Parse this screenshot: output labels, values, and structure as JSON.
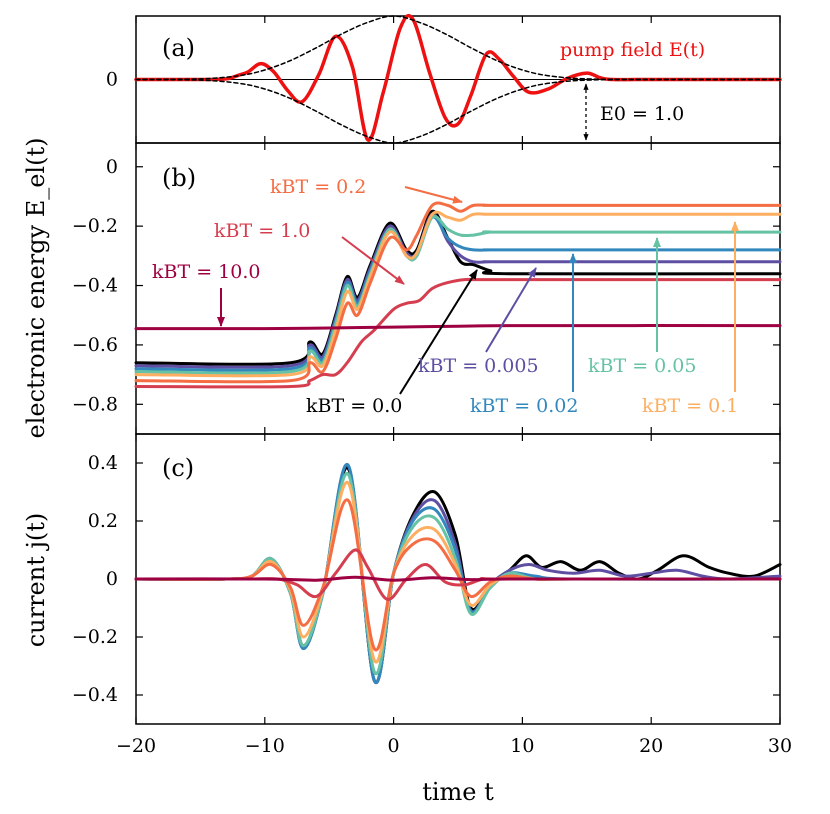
{
  "chart_data": [
    {
      "panel": "(a)",
      "type": "line",
      "x_ticks": [
        -20,
        -10,
        0,
        10,
        20,
        30
      ],
      "y_ticks": [
        0
      ],
      "ylim": [
        -1.0,
        1.0
      ],
      "xlim": [
        -20,
        30
      ],
      "annotations": [
        {
          "text": "pump field E(t)",
          "color": "#ee1111"
        },
        {
          "text": "E0 = 1.0",
          "color": "#000000"
        }
      ],
      "series": [
        {
          "name": "pump field E(t)",
          "color": "#ee1111",
          "style": "solid",
          "x": [
            -20,
            -15,
            -13,
            -12,
            -11.3,
            -10.3,
            -9.3,
            -8.2,
            -7.1,
            -5.8,
            -4.5,
            -3.2,
            -2,
            -0.8,
            0.5,
            1.5,
            2.8,
            4,
            5,
            6,
            7.2,
            8.2,
            9.3,
            10.5,
            12,
            13.5,
            15,
            16,
            17,
            20,
            30
          ],
          "y": [
            0,
            0,
            0.01,
            0.07,
            0.12,
            0.25,
            0.12,
            -0.18,
            -0.35,
            0.08,
            0.68,
            0.2,
            -0.95,
            -0.2,
            0.8,
            0.95,
            0.1,
            -0.6,
            -0.7,
            -0.25,
            0.4,
            0.32,
            0.05,
            -0.2,
            -0.15,
            0.02,
            0.1,
            0.03,
            0,
            0,
            0
          ]
        },
        {
          "name": "envelope",
          "color": "#000000",
          "style": "dashed",
          "x": [
            -20,
            -15,
            -12,
            -10,
            -8,
            -6,
            -4,
            -2,
            0,
            2,
            4,
            6,
            8,
            10,
            12,
            15,
            20,
            30
          ],
          "y": [
            0,
            0.01,
            0.06,
            0.15,
            0.3,
            0.5,
            0.72,
            0.9,
            1.0,
            0.9,
            0.72,
            0.5,
            0.3,
            0.15,
            0.06,
            0.01,
            0,
            0
          ]
        }
      ]
    },
    {
      "panel": "(b)",
      "type": "line",
      "ylabel": "electronic energy E_el(t)",
      "x_ticks": [
        -20,
        -10,
        0,
        10,
        20,
        30
      ],
      "y_ticks": [
        0,
        -0.2,
        -0.4,
        -0.6,
        -0.8
      ],
      "ylim": [
        -0.9,
        0.08
      ],
      "xlim": [
        -20,
        30
      ],
      "series": [
        {
          "name": "kBT = 0.0",
          "color": "#000000",
          "x": [
            -20,
            -8,
            -6.5,
            -5.5,
            -4.5,
            -3.6,
            -2.8,
            -1.8,
            -0.3,
            1,
            1.8,
            3,
            4.2,
            5.2,
            6.2,
            7.5,
            9,
            30
          ],
          "y": [
            -0.66,
            -0.66,
            -0.59,
            -0.63,
            -0.5,
            -0.37,
            -0.44,
            -0.33,
            -0.19,
            -0.28,
            -0.28,
            -0.15,
            -0.24,
            -0.32,
            -0.33,
            -0.35,
            -0.36,
            -0.36
          ]
        },
        {
          "name": "kBT = 0.005",
          "color": "#5e4fa2",
          "x": [
            -20,
            -8,
            -6.5,
            -5.5,
            -4.5,
            -3.6,
            -2.8,
            -1.8,
            -0.3,
            1,
            1.8,
            3,
            4.2,
            5.2,
            6.2,
            7.5,
            9,
            30
          ],
          "y": [
            -0.67,
            -0.67,
            -0.6,
            -0.64,
            -0.51,
            -0.38,
            -0.45,
            -0.34,
            -0.2,
            -0.29,
            -0.29,
            -0.16,
            -0.25,
            -0.3,
            -0.32,
            -0.32,
            -0.32,
            -0.32
          ]
        },
        {
          "name": "kBT = 0.02",
          "color": "#3288bd",
          "x": [
            -20,
            -8,
            -6.5,
            -5.5,
            -4.5,
            -3.6,
            -2.8,
            -1.8,
            -0.3,
            1,
            1.8,
            3,
            4.2,
            5.2,
            6.2,
            7.5,
            9,
            30
          ],
          "y": [
            -0.68,
            -0.68,
            -0.61,
            -0.65,
            -0.52,
            -0.39,
            -0.46,
            -0.35,
            -0.21,
            -0.3,
            -0.3,
            -0.17,
            -0.24,
            -0.27,
            -0.28,
            -0.28,
            -0.28,
            -0.28
          ]
        },
        {
          "name": "kBT = 0.05",
          "color": "#66c2a5",
          "x": [
            -20,
            -8,
            -6.5,
            -5.5,
            -4.5,
            -3.6,
            -2.8,
            -1.8,
            -0.3,
            1,
            1.8,
            3,
            4.2,
            5.2,
            6.2,
            7.5,
            9,
            30
          ],
          "y": [
            -0.69,
            -0.69,
            -0.62,
            -0.66,
            -0.53,
            -0.4,
            -0.47,
            -0.36,
            -0.21,
            -0.3,
            -0.3,
            -0.17,
            -0.21,
            -0.23,
            -0.23,
            -0.22,
            -0.22,
            -0.22
          ]
        },
        {
          "name": "kBT = 0.1",
          "color": "#fdae61",
          "x": [
            -20,
            -8,
            -6.5,
            -5.5,
            -4.5,
            -3.6,
            -2.8,
            -1.8,
            -0.3,
            1,
            1.8,
            3,
            4.2,
            5.2,
            6.2,
            7.5,
            9,
            30
          ],
          "y": [
            -0.7,
            -0.7,
            -0.64,
            -0.67,
            -0.55,
            -0.42,
            -0.48,
            -0.37,
            -0.22,
            -0.3,
            -0.29,
            -0.16,
            -0.17,
            -0.18,
            -0.16,
            -0.16,
            -0.16,
            -0.16
          ]
        },
        {
          "name": "kBT = 0.2",
          "color": "#f46d43",
          "x": [
            -20,
            -8,
            -6.5,
            -5.5,
            -4.5,
            -3.6,
            -2.8,
            -1.8,
            -0.3,
            1,
            1.8,
            3,
            4.2,
            5.2,
            6.2,
            7.5,
            9,
            30
          ],
          "y": [
            -0.72,
            -0.72,
            -0.66,
            -0.69,
            -0.58,
            -0.46,
            -0.5,
            -0.39,
            -0.24,
            -0.28,
            -0.23,
            -0.13,
            -0.13,
            -0.15,
            -0.13,
            -0.13,
            -0.13,
            -0.13
          ]
        },
        {
          "name": "kBT = 1.0",
          "color": "#d53e4f",
          "x": [
            -20,
            -8,
            -6.5,
            -5.5,
            -4.5,
            -3.6,
            -2.5,
            -1.5,
            0,
            1,
            2,
            3,
            4.2,
            5.5,
            6.5,
            8,
            30
          ],
          "y": [
            -0.74,
            -0.74,
            -0.72,
            -0.7,
            -0.7,
            -0.66,
            -0.59,
            -0.55,
            -0.48,
            -0.46,
            -0.45,
            -0.41,
            -0.39,
            -0.38,
            -0.38,
            -0.38,
            -0.38
          ]
        },
        {
          "name": "kBT = 10.0",
          "color": "#9e0142",
          "x": [
            -20,
            -10,
            -5,
            0,
            5,
            10,
            30
          ],
          "y": [
            -0.545,
            -0.545,
            -0.543,
            -0.54,
            -0.537,
            -0.535,
            -0.535
          ]
        }
      ],
      "annotations": [
        {
          "text": "kBT = 0.2",
          "color": "#f46d43"
        },
        {
          "text": "kBT = 1.0",
          "color": "#d53e4f"
        },
        {
          "text": "kBT = 10.0",
          "color": "#9e0142"
        },
        {
          "text": "kBT = 0.0",
          "color": "#000000"
        },
        {
          "text": "kBT = 0.005",
          "color": "#5e4fa2"
        },
        {
          "text": "kBT = 0.02",
          "color": "#3288bd"
        },
        {
          "text": "kBT = 0.05",
          "color": "#66c2a5"
        },
        {
          "text": "kBT = 0.1",
          "color": "#fdae61"
        }
      ]
    },
    {
      "panel": "(c)",
      "type": "line",
      "ylabel": "current j(t)",
      "xlabel": "time t",
      "x_ticks": [
        -20,
        -10,
        0,
        10,
        20,
        30
      ],
      "y_ticks": [
        0.4,
        0.2,
        0,
        -0.2,
        -0.4
      ],
      "ylim": [
        -0.5,
        0.5
      ],
      "xlim": [
        -20,
        30
      ],
      "series": [
        {
          "name": "kBT = 0.0",
          "color": "#000000",
          "x": [
            -20,
            -13,
            -11,
            -9.5,
            -8,
            -7,
            -5.5,
            -3.5,
            -1.5,
            0,
            1.5,
            3.2,
            4.8,
            6,
            7.5,
            9,
            10.3,
            11.5,
            13,
            14.5,
            16,
            17.5,
            19,
            20.5,
            22.5,
            24.5,
            26,
            28,
            30
          ],
          "y": [
            0,
            0,
            0.01,
            0.07,
            -0.05,
            -0.23,
            -0.05,
            0.38,
            -0.35,
            0.02,
            0.22,
            0.3,
            0.15,
            -0.1,
            -0.02,
            0.03,
            0.08,
            0.04,
            0.06,
            0.03,
            0.06,
            0.02,
            0,
            0.03,
            0.08,
            0.04,
            0.02,
            0.01,
            0.05
          ]
        },
        {
          "name": "kBT = 0.005",
          "color": "#5e4fa2",
          "x": [
            -20,
            -13,
            -11,
            -9.5,
            -8,
            -7,
            -5.5,
            -3.5,
            -1.5,
            0,
            1.5,
            3.2,
            4.8,
            6,
            7.5,
            9,
            10.5,
            12,
            14,
            16,
            18,
            20,
            22,
            24,
            26,
            30
          ],
          "y": [
            0,
            0,
            0.01,
            0.07,
            -0.05,
            -0.24,
            -0.05,
            0.39,
            -0.35,
            0.02,
            0.21,
            0.27,
            0.12,
            -0.11,
            -0.02,
            0.03,
            0.05,
            0.03,
            0.02,
            0.03,
            0.01,
            0.02,
            0.03,
            0.01,
            0,
            0.01
          ]
        },
        {
          "name": "kBT = 0.02",
          "color": "#3288bd",
          "x": [
            -20,
            -13,
            -11,
            -9.5,
            -8,
            -7,
            -5.5,
            -3.5,
            -1.5,
            0,
            1.5,
            3.2,
            4.8,
            6,
            7.5,
            9,
            11,
            14,
            30
          ],
          "y": [
            0,
            0,
            0.01,
            0.07,
            -0.05,
            -0.24,
            -0.05,
            0.39,
            -0.35,
            0.02,
            0.2,
            0.24,
            0.1,
            -0.11,
            -0.03,
            0.02,
            0.01,
            0,
            0
          ]
        },
        {
          "name": "kBT = 0.05",
          "color": "#66c2a5",
          "x": [
            -20,
            -13,
            -11,
            -9.5,
            -8,
            -7,
            -5.5,
            -3.5,
            -1.5,
            0,
            1.5,
            3.2,
            4.8,
            6,
            7.5,
            9,
            11,
            14,
            30
          ],
          "y": [
            0,
            0,
            0.01,
            0.07,
            -0.05,
            -0.23,
            -0.05,
            0.36,
            -0.32,
            0.02,
            0.18,
            0.21,
            0.07,
            -0.12,
            -0.03,
            0.02,
            0,
            0,
            0
          ]
        },
        {
          "name": "kBT = 0.1",
          "color": "#fdae61",
          "x": [
            -20,
            -13,
            -11,
            -9.5,
            -8,
            -7,
            -5.5,
            -3.5,
            -1.5,
            0,
            1.5,
            3.2,
            4.8,
            6,
            7.5,
            9,
            11,
            14,
            30
          ],
          "y": [
            0,
            0,
            0.01,
            0.06,
            -0.04,
            -0.2,
            -0.04,
            0.33,
            -0.28,
            0.02,
            0.15,
            0.17,
            0.05,
            -0.09,
            -0.02,
            0.01,
            0,
            0,
            0
          ]
        },
        {
          "name": "kBT = 0.2",
          "color": "#f46d43",
          "x": [
            -20,
            -13,
            -11,
            -9.5,
            -8,
            -7,
            -5.5,
            -3.5,
            -1.5,
            0,
            1.5,
            3.2,
            4.8,
            6,
            7.5,
            9,
            11,
            14,
            30
          ],
          "y": [
            0,
            0,
            0.01,
            0.05,
            -0.03,
            -0.16,
            -0.03,
            0.27,
            -0.24,
            0.02,
            0.12,
            0.13,
            0.03,
            -0.06,
            -0.01,
            0.01,
            0,
            0,
            0
          ]
        },
        {
          "name": "kBT = 1.0",
          "color": "#d53e4f",
          "x": [
            -20,
            -13,
            -11,
            -9,
            -7.5,
            -6,
            -4.5,
            -3,
            -2,
            -0.5,
            1,
            2.5,
            4,
            5.5,
            7,
            9,
            30
          ],
          "y": [
            0,
            0,
            0,
            0,
            -0.02,
            -0.06,
            0.02,
            0.1,
            0.04,
            -0.07,
            0,
            0.05,
            -0.01,
            -0.02,
            0,
            0,
            0
          ]
        },
        {
          "name": "kBT = 10.0",
          "color": "#9e0142",
          "x": [
            -20,
            -10,
            -6,
            -3,
            0,
            3,
            6,
            10,
            30
          ],
          "y": [
            0,
            0,
            -0.004,
            0.006,
            -0.004,
            0.004,
            -0.002,
            0,
            0
          ]
        }
      ]
    }
  ]
}
